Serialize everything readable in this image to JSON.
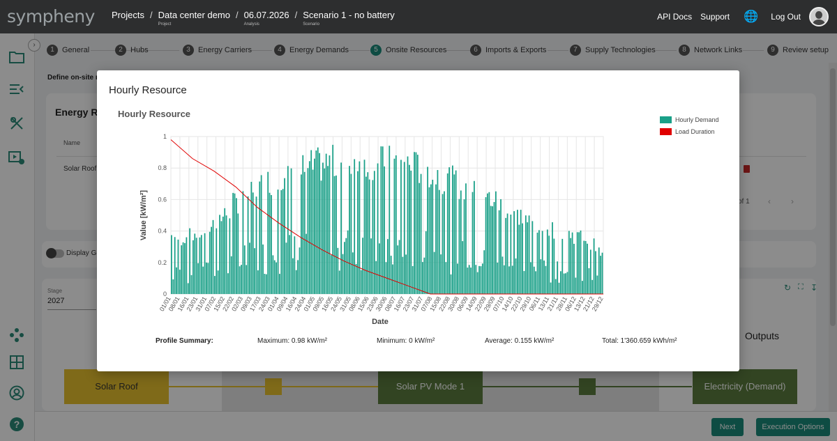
{
  "app": {
    "logo": "sympheny"
  },
  "breadcrumbs": [
    {
      "label": "Projects",
      "sub": ""
    },
    {
      "label": "Data center demo",
      "sub": "Project"
    },
    {
      "label": "06.07.2026",
      "sub": "Analysis"
    },
    {
      "label": "Scenario 1 - no battery",
      "sub": "Scenario"
    }
  ],
  "topnav": {
    "api_docs": "API Docs",
    "support": "Support",
    "logout": "Log Out"
  },
  "sidebar_icons": [
    "folder-icon",
    "list-icon",
    "tools-icon",
    "play-settings-icon",
    "hub-network-icon",
    "grid-icon",
    "user-icon",
    "help-icon"
  ],
  "stepper": [
    {
      "num": "1",
      "label": "General"
    },
    {
      "num": "2",
      "label": "Hubs"
    },
    {
      "num": "3",
      "label": "Energy Carriers"
    },
    {
      "num": "4",
      "label": "Energy Demands"
    },
    {
      "num": "5",
      "label": "Onsite Resources",
      "active": true
    },
    {
      "num": "6",
      "label": "Imports & Exports"
    },
    {
      "num": "7",
      "label": "Supply Technologies"
    },
    {
      "num": "8",
      "label": "Network Links"
    },
    {
      "num": "9",
      "label": "Review setup"
    }
  ],
  "background": {
    "define_text": "Define on-site r",
    "card_title": "Energy Re",
    "name_col": "Name",
    "row_name": "Solar Roof",
    "pagination": "of 1",
    "display_toggle": "Display G",
    "stage_label": "Stage",
    "stage_value": "2027",
    "outputs_label": "Outputs"
  },
  "flow": {
    "source": "Solar Roof",
    "tech": "Solar PV Mode 1",
    "output": "Electricity (Demand)"
  },
  "buttons": {
    "next": "Next",
    "execution": "Execution Options"
  },
  "modal": {
    "title": "Hourly Resource",
    "chart_title": "Hourly Resource",
    "summary_label": "Profile Summary:",
    "maximum": "Maximum: 0.98 kW/m²",
    "minimum": "Minimum: 0 kW/m²",
    "average": "Average: 0.155 kW/m²",
    "total": "Total: 1'360.659 kWh/m²"
  },
  "colors": {
    "demand": "#1aa088",
    "duration": "#e00000",
    "accent": "#1a8b7b"
  },
  "chart_data": {
    "type": "bar",
    "title": "Hourly Resource",
    "xlabel": "Date",
    "ylabel": "Value [kW/m²]",
    "ylim": [
      0,
      1
    ],
    "yticks": [
      "0",
      "0.2",
      "0.4",
      "0.6",
      "0.8",
      "1"
    ],
    "legend_position": "top-right",
    "categories": [
      "01/01",
      "08/01",
      "16/01",
      "23/01",
      "31/01",
      "07/02",
      "15/02",
      "22/02",
      "02/03",
      "09/03",
      "17/03",
      "24/03",
      "01/04",
      "09/04",
      "16/04",
      "24/04",
      "01/05",
      "09/05",
      "16/05",
      "24/05",
      "31/05",
      "08/06",
      "15/06",
      "23/06",
      "30/06",
      "08/07",
      "16/07",
      "23/07",
      "31/07",
      "07/08",
      "15/08",
      "22/08",
      "30/08",
      "06/09",
      "14/09",
      "22/09",
      "29/09",
      "07/10",
      "14/10",
      "22/10",
      "29/10",
      "06/11",
      "13/11",
      "21/11",
      "28/11",
      "06/12",
      "13/12",
      "21/12",
      "29/12"
    ],
    "series": [
      {
        "name": "Hourly Demand",
        "type": "bar",
        "values_daily_max_by_week": [
          0.42,
          0.4,
          0.42,
          0.44,
          0.47,
          0.54,
          0.57,
          0.66,
          0.7,
          0.74,
          0.78,
          0.82,
          0.85,
          0.87,
          0.89,
          0.91,
          0.93,
          0.94,
          0.95,
          0.95,
          0.96,
          0.96,
          0.96,
          0.95,
          0.95,
          0.95,
          0.94,
          0.92,
          0.91,
          0.88,
          0.85,
          0.83,
          0.79,
          0.75,
          0.72,
          0.7,
          0.68,
          0.64,
          0.6,
          0.56,
          0.52,
          0.5,
          0.48,
          0.46,
          0.44,
          0.42,
          0.41,
          0.36,
          0.28
        ]
      },
      {
        "name": "Load Duration",
        "type": "line",
        "x": [
          0,
          0.05,
          0.1,
          0.15,
          0.2,
          0.25,
          0.3,
          0.35,
          0.4,
          0.45,
          0.5,
          0.55,
          0.6,
          1.0
        ],
        "values": [
          0.98,
          0.86,
          0.78,
          0.68,
          0.55,
          0.45,
          0.36,
          0.28,
          0.21,
          0.15,
          0.1,
          0.05,
          0.0,
          0.0
        ]
      }
    ]
  }
}
